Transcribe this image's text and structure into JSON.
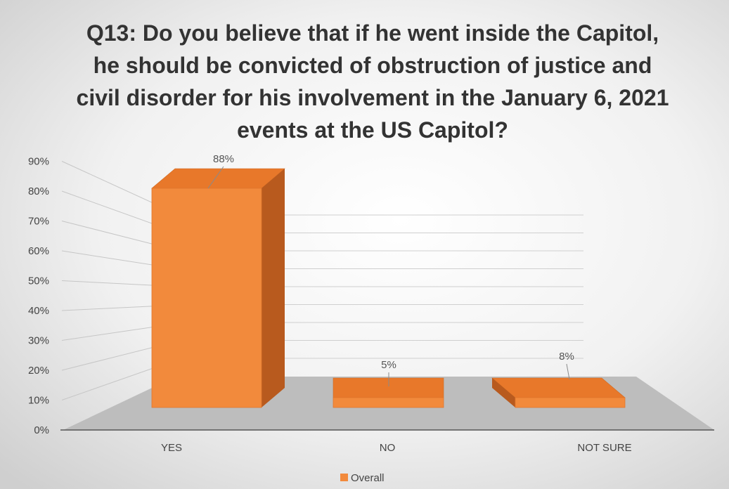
{
  "chart_data": {
    "type": "bar",
    "title": "Q13: Do you believe that if he went inside the Capitol, he should be convicted of obstruction of justice and civil disorder for his involvement in the January 6, 2021 events at the US Capitol?",
    "title_lines": [
      "Q13: Do you believe that if he went inside the Capitol,",
      "he should be convicted of obstruction of justice and",
      "civil disorder for his involvement in the January 6, 2021",
      "events at the US Capitol?"
    ],
    "categories": [
      "YES",
      "NO",
      "NOT SURE"
    ],
    "series": [
      {
        "name": "Overall",
        "values": [
          88,
          5,
          8
        ]
      }
    ],
    "data_labels": [
      "88%",
      "5%",
      "8%"
    ],
    "y_ticks": [
      "0%",
      "10%",
      "20%",
      "30%",
      "40%",
      "50%",
      "60%",
      "70%",
      "80%",
      "90%"
    ],
    "ylim": [
      0,
      90
    ],
    "xlabel": "",
    "ylabel": "",
    "grid": true,
    "legend_position": "bottom",
    "style": "3d-column",
    "colors": {
      "bar_front": "#F28A3C",
      "bar_top": "#E8782A",
      "bar_side": "#B85A1E",
      "floor": "#BDBDBD",
      "background_center": "#FFFFFF",
      "background_edge": "#D2D2D2"
    }
  }
}
